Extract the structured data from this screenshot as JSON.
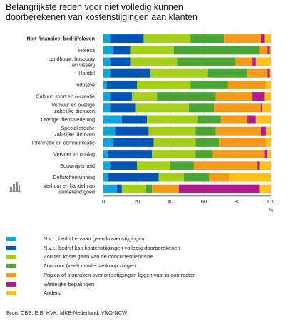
{
  "title_lines": [
    "Belangrijkste reden voor niet volledig kunnen",
    "doorberekenen van kostenstijgingen aan klanten"
  ],
  "source": "Bron: CBS, EIB, KVK, MKB-Nederland, VNO-NCW",
  "colors": {
    "nvt_geen": "#0ea5d8",
    "nvt_volledig": "#0054b4",
    "concurrentie": "#a6cf1b",
    "verkoop": "#4aa534",
    "contracten": "#f59b1c",
    "wettelijk": "#b01c8b",
    "anders": "#ffc21c"
  },
  "legend": [
    {
      "key": "nvt_geen",
      "label": "N.v.t., bedrijf ervaart geen kostenstijgingen"
    },
    {
      "key": "nvt_volledig",
      "label": "N.v.t., bedrijf kan kostenstijgingen volledig doorberekenen"
    },
    {
      "key": "concurrentie",
      "label": "Zou ten koste gaan van de concurrentiepositie"
    },
    {
      "key": "verkoop",
      "label": "Zou voor (veel) minder verkoop zorgen"
    },
    {
      "key": "contracten",
      "label": "Prijzen of afspraken over prijsstijgingen liggen vast in contracten"
    },
    {
      "key": "wettelijk",
      "label": "Wettelijke bepalingen"
    },
    {
      "key": "anders",
      "label": "Anders"
    }
  ],
  "chart_data": {
    "type": "bar",
    "orientation": "horizontal",
    "stacked": true,
    "xlim": [
      0,
      100
    ],
    "xticks": [
      0,
      20,
      40,
      60,
      80,
      100
    ],
    "xlabel": "%",
    "grid": true,
    "categories": [
      {
        "lines": [
          "Niet-financieel bedrijfsleven"
        ],
        "bold": true
      },
      {
        "lines": [
          "Horeca"
        ]
      },
      {
        "lines": [
          "Landbouw, bosbouw",
          "en visserij"
        ]
      },
      {
        "lines": [
          "Handel"
        ]
      },
      {
        "lines": [
          "Industrie"
        ]
      },
      {
        "lines": [
          "Cultuur, sport en recreatie"
        ]
      },
      {
        "lines": [
          "Verhuur en overige",
          "zakelijke diensten"
        ]
      },
      {
        "lines": [
          "Overige dienstverlening"
        ]
      },
      {
        "lines": [
          "Specialistische",
          "zakelijke diensten"
        ]
      },
      {
        "lines": [
          "Informatie en communicatie"
        ]
      },
      {
        "lines": [
          "Vervoer en opslag"
        ]
      },
      {
        "lines": [
          "Bouwnijverheid"
        ]
      },
      {
        "lines": [
          "Delfstoffenwinning"
        ]
      },
      {
        "lines": [
          "Verhuur en handel van",
          "onroerend goed"
        ]
      }
    ],
    "series": [
      {
        "name": "N.v.t., bedrijf ervaart geen kostenstijgingen",
        "key": "nvt_geen",
        "values": [
          4,
          6,
          4,
          4,
          2,
          4,
          4,
          11,
          7,
          6,
          3,
          4,
          3,
          8
        ]
      },
      {
        "name": "N.v.t., bedrijf kan kostenstijgingen volledig doorberekenen",
        "key": "nvt_volledig",
        "values": [
          20,
          10,
          12,
          24,
          18,
          13,
          15,
          15,
          20,
          24,
          26,
          16,
          30,
          3
        ]
      },
      {
        "name": "Zou ten koste gaan van de concurrentiepositie",
        "key": "concurrentie",
        "values": [
          28,
          26,
          28,
          34,
          32,
          15,
          32,
          30,
          28,
          25,
          26,
          20,
          15,
          14
        ]
      },
      {
        "name": "Zou voor (veel) minder verkoop zorgen",
        "key": "verkoop",
        "values": [
          20,
          51,
          35,
          24,
          22,
          35,
          15,
          14,
          12,
          14,
          10,
          14,
          15,
          4
        ]
      },
      {
        "name": "Prijzen of afspraken over prijsstijgingen liggen vast in contracten",
        "key": "contracten",
        "values": [
          22,
          5,
          10,
          12,
          23,
          22,
          28,
          16,
          27,
          28,
          31,
          38,
          12,
          16
        ]
      },
      {
        "name": "Wettelijke bepalingen",
        "key": "wettelijk",
        "values": [
          2,
          1,
          2,
          1,
          0,
          7,
          1,
          5,
          3,
          0,
          2,
          1,
          0,
          48
        ]
      },
      {
        "name": "Anders",
        "key": "anders",
        "values": [
          4,
          1,
          9,
          1,
          3,
          4,
          5,
          9,
          3,
          3,
          2,
          7,
          25,
          7
        ]
      }
    ]
  }
}
